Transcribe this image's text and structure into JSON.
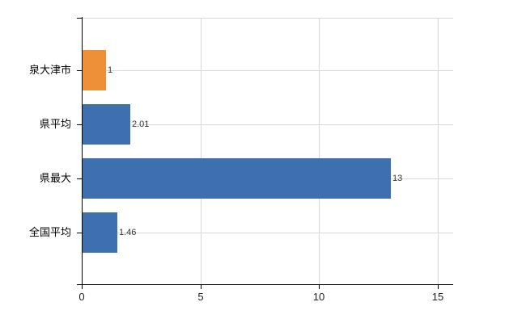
{
  "chart_data": {
    "type": "bar",
    "orientation": "horizontal",
    "title": "",
    "xlabel": "",
    "ylabel": "",
    "categories": [
      "泉大津市",
      "県平均",
      "県最大",
      "全国平均"
    ],
    "values": [
      1,
      2.01,
      13,
      1.46
    ],
    "value_labels": [
      "1",
      "2.01",
      "13",
      "1.46"
    ],
    "bar_colors": [
      "#EE9038",
      "#3E6FAE",
      "#3E6FAE",
      "#3E6FAE"
    ],
    "x_ticks": [
      0,
      5,
      10,
      15
    ],
    "x_tick_labels": [
      "0",
      "5",
      "10",
      "15"
    ],
    "xlim": [
      0,
      15.65
    ],
    "grid": true,
    "legend": false,
    "colors": {
      "highlight_bar": "#EE9038",
      "default_bar": "#3E6FAE",
      "gridline": "#D9D9D9",
      "axis": "#000000",
      "background": "#FFFFFF"
    }
  }
}
